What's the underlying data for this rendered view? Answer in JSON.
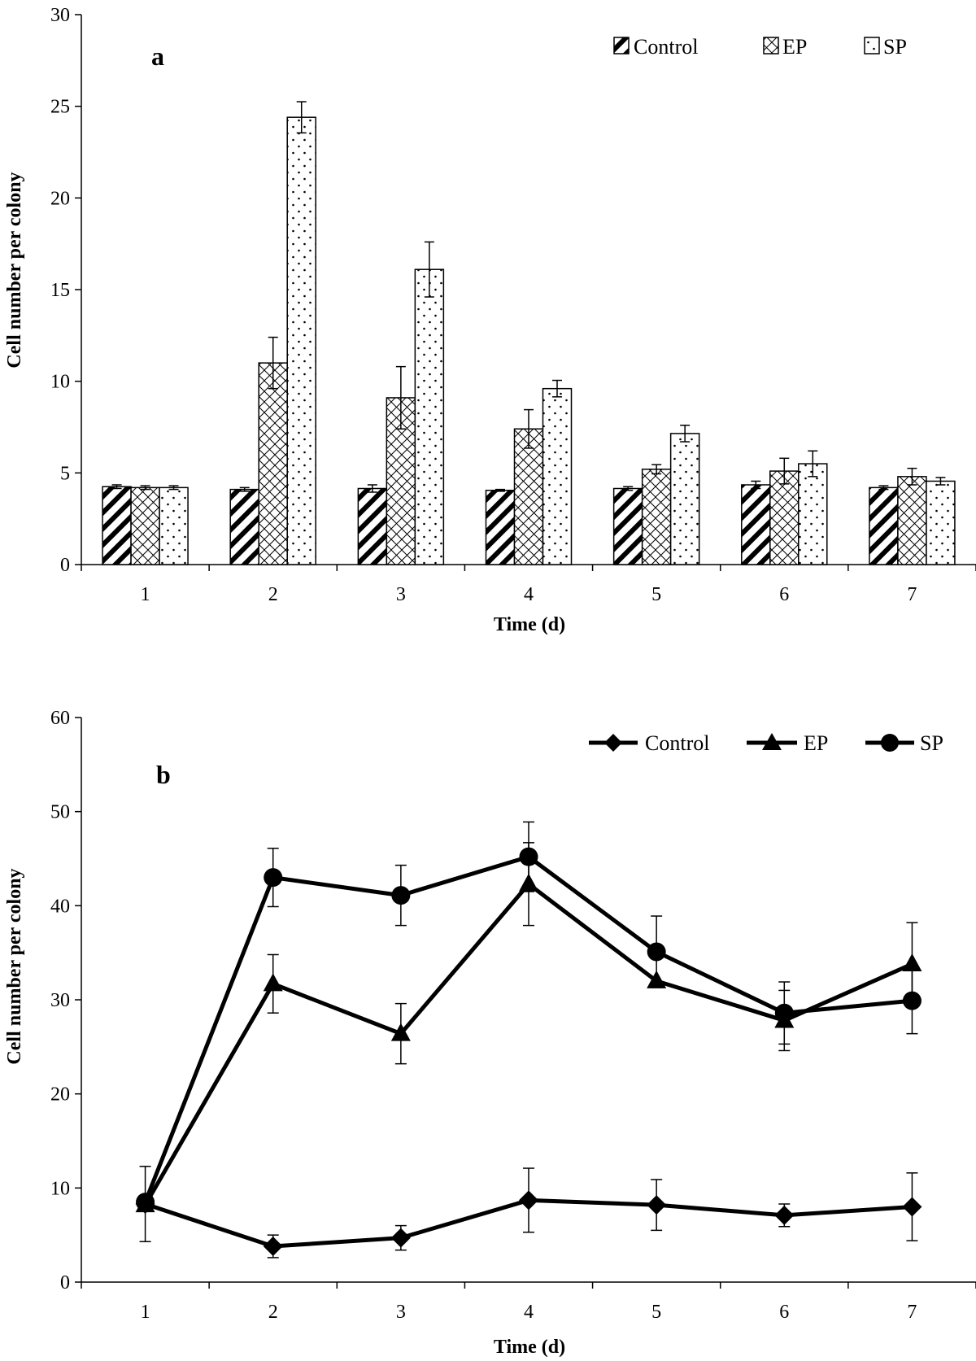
{
  "chart_data": [
    {
      "type": "bar",
      "panel_label": "a",
      "categories": [
        "1",
        "2",
        "3",
        "4",
        "5",
        "6",
        "7"
      ],
      "xlabel": "Time (d)",
      "ylabel": "Cell number per colony",
      "ylim": [
        0,
        30
      ],
      "yticks": [
        "0",
        "5",
        "10",
        "15",
        "20",
        "25",
        "30"
      ],
      "legend_position": "top-right",
      "series": [
        {
          "name": "Control",
          "pattern": "diagonal-stripes",
          "values": [
            4.25,
            4.1,
            4.15,
            4.05,
            4.15,
            4.35,
            4.2
          ],
          "errors": [
            0.1,
            0.1,
            0.2,
            0.05,
            0.1,
            0.2,
            0.1
          ]
        },
        {
          "name": "EP",
          "pattern": "crosshatch",
          "values": [
            4.2,
            11.0,
            9.1,
            7.4,
            5.2,
            5.1,
            4.8
          ],
          "errors": [
            0.1,
            1.4,
            1.7,
            1.05,
            0.25,
            0.7,
            0.45
          ]
        },
        {
          "name": "SP",
          "pattern": "dots",
          "values": [
            4.2,
            24.4,
            16.1,
            9.6,
            7.15,
            5.5,
            4.55
          ],
          "errors": [
            0.1,
            0.85,
            1.5,
            0.45,
            0.45,
            0.7,
            0.2
          ]
        }
      ]
    },
    {
      "type": "line",
      "panel_label": "b",
      "categories": [
        "1",
        "2",
        "3",
        "4",
        "5",
        "6",
        "7"
      ],
      "xlabel": "Time (d)",
      "ylabel": "Cell number per colony",
      "ylim": [
        0,
        60
      ],
      "yticks": [
        "0",
        "10",
        "20",
        "30",
        "40",
        "50",
        "60"
      ],
      "legend_position": "top-right",
      "series": [
        {
          "name": "Control",
          "marker": "diamond",
          "values": [
            8.3,
            3.8,
            4.7,
            8.7,
            8.2,
            7.1,
            8.0
          ],
          "errors": [
            4.0,
            1.2,
            1.3,
            3.4,
            2.7,
            1.2,
            3.6
          ]
        },
        {
          "name": "EP",
          "marker": "triangle",
          "values": [
            8.2,
            31.7,
            26.4,
            42.3,
            32.0,
            27.8,
            33.8
          ],
          "errors": [
            0.0,
            3.1,
            3.2,
            4.4,
            0.0,
            3.2,
            4.4
          ]
        },
        {
          "name": "SP",
          "marker": "circle",
          "values": [
            8.5,
            43.0,
            41.1,
            45.2,
            35.1,
            28.6,
            29.9
          ],
          "errors": [
            0.0,
            3.1,
            3.2,
            3.7,
            3.8,
            3.3,
            3.5
          ]
        }
      ]
    }
  ]
}
